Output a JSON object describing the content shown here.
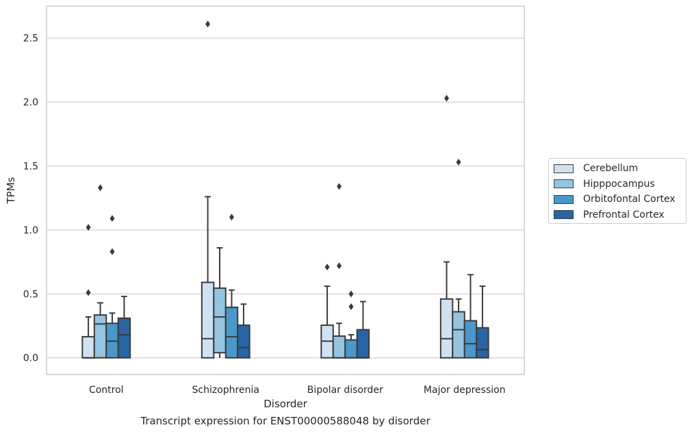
{
  "caption": "Transcript expression for ENST00000588048 by disorder",
  "chart_data": {
    "type": "boxplot",
    "xlabel": "Disorder",
    "ylabel": "TPMs",
    "ylim": [
      -0.13,
      2.75
    ],
    "yticks": [
      "0.0",
      "0.5",
      "1.0",
      "1.5",
      "2.0",
      "2.5"
    ],
    "categories": [
      "Control",
      "Schizophrenia",
      "Bipolar disorder",
      "Major depression"
    ],
    "grid": "horizontal",
    "legend_position": "right",
    "series": [
      {
        "name": "Cerebellum",
        "color": "#d0e1f2",
        "boxes": [
          {
            "whislo": 0.0,
            "q1": 0.0,
            "med": 0.0,
            "q3": 0.165,
            "whishi": 0.32,
            "fliers": [
              0.51,
              1.02
            ]
          },
          {
            "whislo": 0.0,
            "q1": 0.0,
            "med": 0.15,
            "q3": 0.59,
            "whishi": 1.26,
            "fliers": [
              2.61
            ]
          },
          {
            "whislo": 0.0,
            "q1": 0.0,
            "med": 0.13,
            "q3": 0.255,
            "whishi": 0.56,
            "fliers": [
              0.71
            ]
          },
          {
            "whislo": 0.0,
            "q1": 0.0,
            "med": 0.15,
            "q3": 0.46,
            "whishi": 0.75,
            "fliers": [
              2.03
            ]
          }
        ]
      },
      {
        "name": "Hipppocampus",
        "color": "#94c4df",
        "boxes": [
          {
            "whislo": 0.0,
            "q1": 0.0,
            "med": 0.265,
            "q3": 0.335,
            "whishi": 0.43,
            "fliers": [
              1.33
            ]
          },
          {
            "whislo": 0.0,
            "q1": 0.04,
            "med": 0.32,
            "q3": 0.545,
            "whishi": 0.86,
            "fliers": []
          },
          {
            "whislo": 0.0,
            "q1": 0.0,
            "med": 0.0,
            "q3": 0.17,
            "whishi": 0.27,
            "fliers": [
              0.72,
              1.34
            ]
          },
          {
            "whislo": 0.0,
            "q1": 0.0,
            "med": 0.22,
            "q3": 0.36,
            "whishi": 0.46,
            "fliers": [
              1.53
            ]
          }
        ]
      },
      {
        "name": "Orbitofontal Cortex",
        "color": "#4a98c9",
        "boxes": [
          {
            "whislo": 0.0,
            "q1": 0.0,
            "med": 0.13,
            "q3": 0.27,
            "whishi": 0.35,
            "fliers": [
              0.83,
              1.09
            ]
          },
          {
            "whislo": 0.0,
            "q1": 0.0,
            "med": 0.165,
            "q3": 0.395,
            "whishi": 0.53,
            "fliers": [
              1.1
            ]
          },
          {
            "whislo": 0.0,
            "q1": 0.0,
            "med": 0.0,
            "q3": 0.14,
            "whishi": 0.18,
            "fliers": [
              0.4,
              0.5
            ]
          },
          {
            "whislo": 0.0,
            "q1": 0.0,
            "med": 0.11,
            "q3": 0.29,
            "whishi": 0.65,
            "fliers": []
          }
        ]
      },
      {
        "name": "Prefrontal Cortex",
        "color": "#2964a4",
        "boxes": [
          {
            "whislo": 0.0,
            "q1": 0.0,
            "med": 0.18,
            "q3": 0.31,
            "whishi": 0.48,
            "fliers": []
          },
          {
            "whislo": 0.0,
            "q1": 0.0,
            "med": 0.08,
            "q3": 0.255,
            "whishi": 0.42,
            "fliers": []
          },
          {
            "whislo": 0.0,
            "q1": 0.0,
            "med": 0.0,
            "q3": 0.22,
            "whishi": 0.44,
            "fliers": []
          },
          {
            "whislo": 0.0,
            "q1": 0.0,
            "med": 0.065,
            "q3": 0.235,
            "whishi": 0.56,
            "fliers": []
          }
        ]
      }
    ]
  }
}
